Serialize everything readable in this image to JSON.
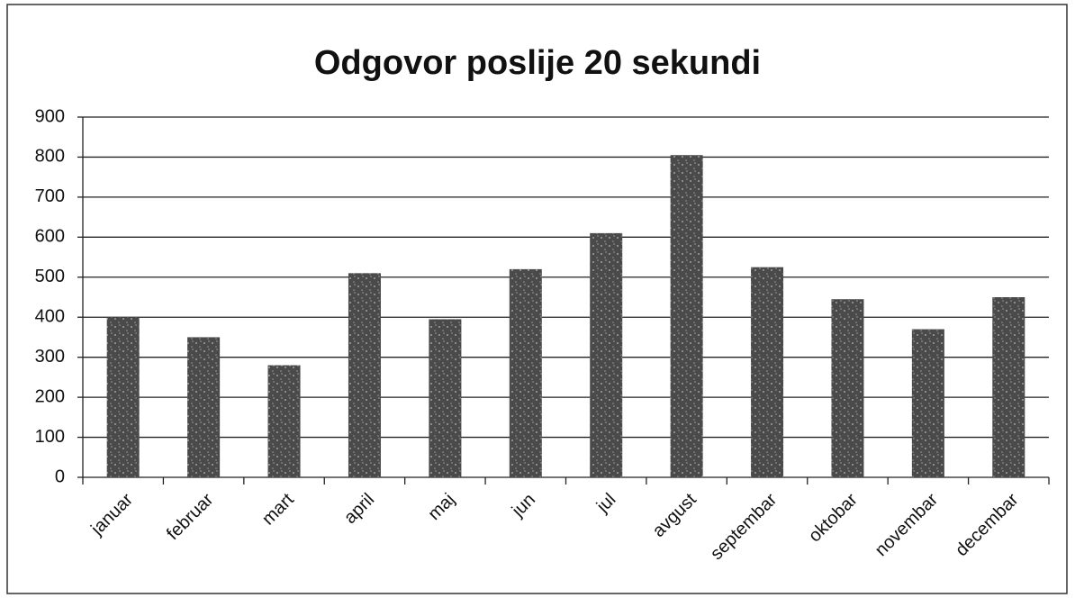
{
  "chart_data": {
    "type": "bar",
    "title": "Odgovor poslije 20 sekundi",
    "categories": [
      "januar",
      "februar",
      "mart",
      "april",
      "maj",
      "jun",
      "jul",
      "avgust",
      "septembar",
      "oktobar",
      "novembar",
      "decembar"
    ],
    "values": [
      400,
      350,
      280,
      510,
      395,
      520,
      610,
      805,
      525,
      445,
      370,
      450
    ],
    "color": "#4a4a4a",
    "ylim": [
      0,
      900
    ],
    "yticks": [
      0,
      100,
      200,
      300,
      400,
      500,
      600,
      700,
      800,
      900
    ],
    "grid": true
  }
}
